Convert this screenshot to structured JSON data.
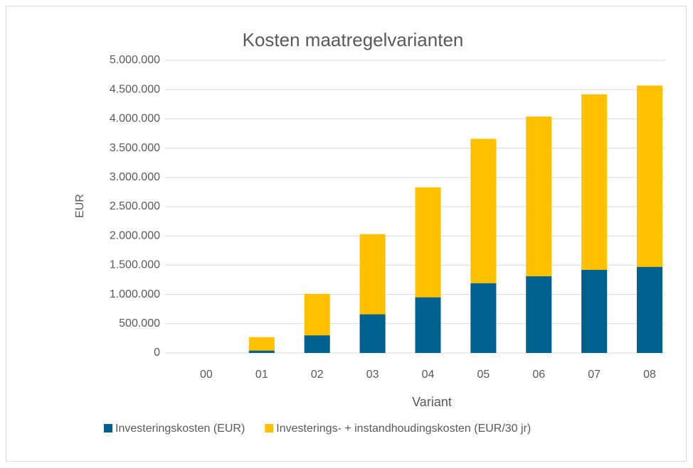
{
  "chart_data": {
    "type": "bar",
    "overlap": true,
    "title": "Kosten maatregelvarianten",
    "x_label": "Variant",
    "y_label": "EUR",
    "categories": [
      "00",
      "01",
      "02",
      "03",
      "04",
      "05",
      "06",
      "07",
      "08"
    ],
    "series": [
      {
        "name": "Investerings- + instandhoudingskosten (EUR/30 jr)",
        "color": "#ffc000",
        "values": [
          0,
          270000,
          1010000,
          2030000,
          2830000,
          3660000,
          4040000,
          4420000,
          4570000
        ]
      },
      {
        "name": "Investeringskosten (EUR)",
        "color": "#00618f",
        "values": [
          0,
          40000,
          300000,
          660000,
          950000,
          1190000,
          1310000,
          1420000,
          1470000
        ]
      }
    ],
    "legend_order": [
      1,
      0
    ],
    "ylim": [
      0,
      5000000
    ],
    "yticks": [
      0,
      {
        "value": 500000,
        "label": "500.000"
      },
      {
        "value": 1000000,
        "label": "1.000.000"
      },
      {
        "value": 1500000,
        "label": "1.500.000"
      },
      {
        "value": 2000000,
        "label": "2.000.000"
      },
      {
        "value": 2500000,
        "label": "2.500.000"
      },
      {
        "value": 3000000,
        "label": "3.000.000"
      },
      {
        "value": 3500000,
        "label": "3.500.000"
      },
      {
        "value": 4000000,
        "label": "4.000.000"
      },
      {
        "value": 4500000,
        "label": "4.500.000"
      },
      {
        "value": 5000000,
        "label": "5.000.000"
      }
    ],
    "grid": true,
    "legend": "bottom"
  }
}
